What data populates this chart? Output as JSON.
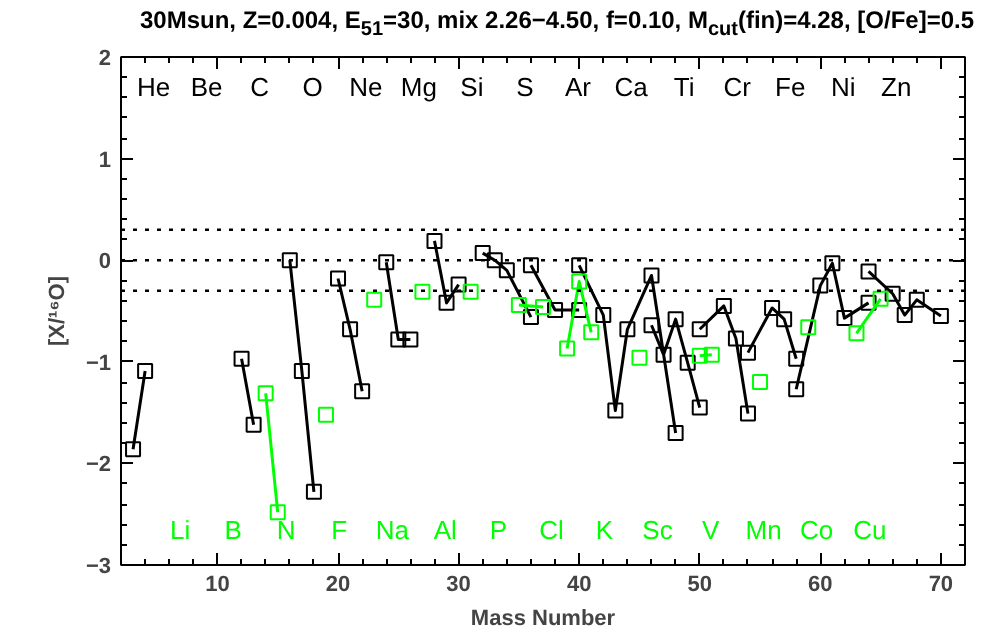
{
  "chart_data": {
    "type": "line",
    "title": "30Msun, Z=0.004, E$_{51}$=30, mix 2.26−4.50, f=0.10, M$_{cut}$(fin)=4.28, [O/Fe]=0.5",
    "xlabel": "Mass Number",
    "ylabel": "[X/¹⁶O]",
    "xlim": [
      2,
      72
    ],
    "xticks": [
      10,
      20,
      30,
      40,
      50,
      60,
      70
    ],
    "ylim": [
      -3,
      2
    ],
    "yticks": [
      -3,
      -2,
      -1,
      0,
      1,
      2
    ],
    "marker": "square",
    "line_style": "solid",
    "grid": false,
    "series": [
      {
        "color": "#000000",
        "x": [
          3,
          4,
          null,
          12,
          13,
          null,
          16,
          17,
          18,
          null,
          20,
          21,
          22,
          null,
          24,
          25,
          26,
          null,
          28,
          29,
          30,
          null,
          32,
          33,
          34,
          36,
          null,
          36,
          38,
          40,
          null,
          40,
          42,
          43,
          44,
          46,
          48,
          null,
          46,
          47,
          48,
          49,
          50,
          null,
          50,
          52,
          53,
          54,
          null,
          54,
          56,
          57,
          58,
          null,
          58,
          60,
          61,
          62,
          64,
          null,
          64,
          66,
          67,
          68,
          70
        ],
        "values": [
          -1.86,
          -1.09,
          null,
          -0.97,
          -1.62,
          null,
          0.0,
          -1.09,
          -2.28,
          null,
          -0.18,
          -0.68,
          -1.29,
          null,
          -0.02,
          -0.78,
          -0.78,
          null,
          0.19,
          -0.42,
          -0.24,
          null,
          0.07,
          0.0,
          -0.1,
          -0.56,
          null,
          -0.05,
          -0.49,
          -0.49,
          null,
          -0.05,
          -0.54,
          -1.48,
          -0.68,
          -0.15,
          -1.7,
          null,
          -0.64,
          -0.93,
          -0.58,
          -1.01,
          -1.45,
          null,
          -0.68,
          -0.45,
          -0.77,
          -1.51,
          null,
          -0.91,
          -0.47,
          -0.58,
          -0.97,
          null,
          -1.27,
          -0.25,
          -0.03,
          -0.57,
          -0.42,
          null,
          -0.11,
          -0.33,
          -0.54,
          -0.39,
          -0.55
        ]
      },
      {
        "color": "#00ff00",
        "x": [
          14,
          15,
          null,
          19,
          null,
          23,
          null,
          27,
          null,
          31,
          null,
          35,
          37,
          null,
          39,
          40,
          41,
          null,
          45,
          null,
          50,
          51,
          null,
          55,
          null,
          59,
          null,
          63,
          65
        ],
        "values": [
          -1.31,
          -2.48,
          null,
          -1.52,
          null,
          -0.39,
          null,
          -0.31,
          null,
          -0.31,
          null,
          -0.44,
          -0.46,
          null,
          -0.87,
          -0.21,
          -0.71,
          null,
          -0.96,
          null,
          -0.94,
          -0.93,
          null,
          -1.2,
          null,
          -0.66,
          null,
          -0.72,
          -0.38
        ]
      }
    ],
    "ref_lines": [
      {
        "axis": "y",
        "value": 0.3,
        "color": "#000000",
        "line_style": "dotted"
      },
      {
        "axis": "y",
        "value": 0,
        "color": "#000000",
        "line_style": "dotted"
      },
      {
        "axis": "y",
        "value": -0.3,
        "color": "#000000",
        "line_style": "dotted"
      }
    ],
    "annotations": [
      "He",
      "Li",
      "Be",
      "B",
      "C",
      "N",
      "O",
      "F",
      "Ne",
      "Na",
      "Mg",
      "Al",
      "Si",
      "P",
      "S",
      "Cl",
      "Ar",
      "K",
      "Ca",
      "Sc",
      "Ti",
      "V",
      "Cr",
      "Mn",
      "Fe",
      "Co",
      "Ni",
      "Cu",
      "Zn"
    ]
  }
}
